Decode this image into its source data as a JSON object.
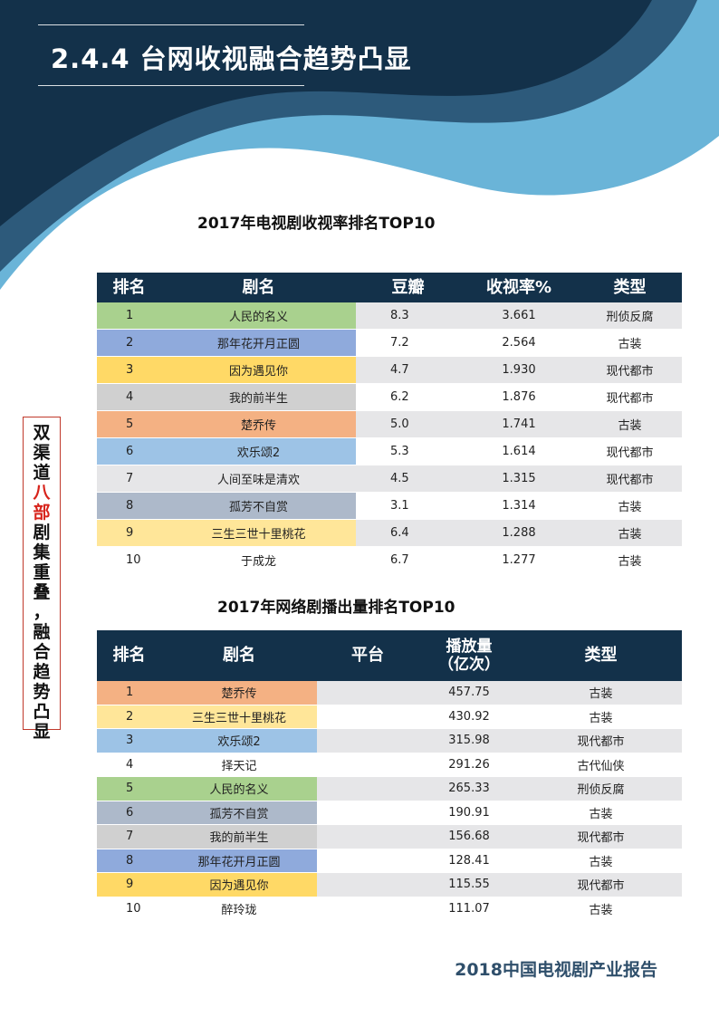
{
  "colors": {
    "header_dark": "#13314a",
    "header_light": "#6ab4d8",
    "row_green": "#a9d18e",
    "row_blue": "#8faadc",
    "row_yellow": "#ffd966",
    "row_gray": "#d0d0d0",
    "row_orange": "#f4b183",
    "row_lightblue": "#9dc3e6",
    "row_slate": "#adb9ca",
    "row_lightyellow": "#ffe699",
    "side_highlight": "#d7231b"
  },
  "page": {
    "title": "2.4.4  台网收视融合趋势凸显",
    "footer": "2018中国电视剧产业报告"
  },
  "side_note": {
    "lines": [
      "双",
      "渠",
      "道",
      "八",
      "部",
      "剧",
      "集",
      "重",
      "叠",
      "，",
      "融",
      "合",
      "趋",
      "势",
      "凸",
      "显"
    ],
    "highlight": "八部"
  },
  "tv_table": {
    "title": "2017年电视剧收视率排名TOP10",
    "headers": [
      "排名",
      "剧名",
      "豆瓣",
      "收视率%",
      "类型"
    ],
    "rows": [
      {
        "rank": "1",
        "name": "人民的名义",
        "douban": "8.3",
        "rating": "3.661",
        "genre": "刑侦反腐",
        "color": "#a9d18e"
      },
      {
        "rank": "2",
        "name": "那年花开月正圆",
        "douban": "7.2",
        "rating": "2.564",
        "genre": "古装",
        "color": "#8faadc"
      },
      {
        "rank": "3",
        "name": "因为遇见你",
        "douban": "4.7",
        "rating": "1.930",
        "genre": "现代都市",
        "color": "#ffd966"
      },
      {
        "rank": "4",
        "name": "我的前半生",
        "douban": "6.2",
        "rating": "1.876",
        "genre": "现代都市",
        "color": "#d0d0d0"
      },
      {
        "rank": "5",
        "name": "楚乔传",
        "douban": "5.0",
        "rating": "1.741",
        "genre": "古装",
        "color": "#f4b183"
      },
      {
        "rank": "6",
        "name": "欢乐颂2",
        "douban": "5.3",
        "rating": "1.614",
        "genre": "现代都市",
        "color": "#9dc3e6"
      },
      {
        "rank": "7",
        "name": "人间至味是清欢",
        "douban": "4.5",
        "rating": "1.315",
        "genre": "现代都市",
        "color": "#e6e6e8"
      },
      {
        "rank": "8",
        "name": "孤芳不自赏",
        "douban": "3.1",
        "rating": "1.314",
        "genre": "古装",
        "color": "#adb9ca"
      },
      {
        "rank": "9",
        "name": "三生三世十里桃花",
        "douban": "6.4",
        "rating": "1.288",
        "genre": "古装",
        "color": "#ffe699"
      },
      {
        "rank": "10",
        "name": "于成龙",
        "douban": "6.7",
        "rating": "1.277",
        "genre": "古装",
        "color": "#ffffff"
      }
    ]
  },
  "web_table": {
    "title": "2017年网络剧播出量排名TOP10",
    "headers": [
      "排名",
      "剧名",
      "平台",
      "播放量\n（亿次）",
      "类型"
    ],
    "rows": [
      {
        "rank": "1",
        "name": "楚乔传",
        "platform": "",
        "plays": "457.75",
        "genre": "古装",
        "color": "#f4b183"
      },
      {
        "rank": "2",
        "name": "三生三世十里桃花",
        "platform": "",
        "plays": "430.92",
        "genre": "古装",
        "color": "#ffe699"
      },
      {
        "rank": "3",
        "name": "欢乐颂2",
        "platform": "",
        "plays": "315.98",
        "genre": "现代都市",
        "color": "#9dc3e6"
      },
      {
        "rank": "4",
        "name": "择天记",
        "platform": "",
        "plays": "291.26",
        "genre": "古代仙侠",
        "color": "#ffffff"
      },
      {
        "rank": "5",
        "name": "人民的名义",
        "platform": "",
        "plays": "265.33",
        "genre": "刑侦反腐",
        "color": "#a9d18e"
      },
      {
        "rank": "6",
        "name": "孤芳不自赏",
        "platform": "",
        "plays": "190.91",
        "genre": "古装",
        "color": "#adb9ca"
      },
      {
        "rank": "7",
        "name": "我的前半生",
        "platform": "",
        "plays": "156.68",
        "genre": "现代都市",
        "color": "#d0d0d0"
      },
      {
        "rank": "8",
        "name": "那年花开月正圆",
        "platform": "",
        "plays": "128.41",
        "genre": "古装",
        "color": "#8faadc"
      },
      {
        "rank": "9",
        "name": "因为遇见你",
        "platform": "",
        "plays": "115.55",
        "genre": "现代都市",
        "color": "#ffd966"
      },
      {
        "rank": "10",
        "name": "醉玲珑",
        "platform": "",
        "plays": "111.07",
        "genre": "古装",
        "color": "#ffffff"
      }
    ]
  }
}
